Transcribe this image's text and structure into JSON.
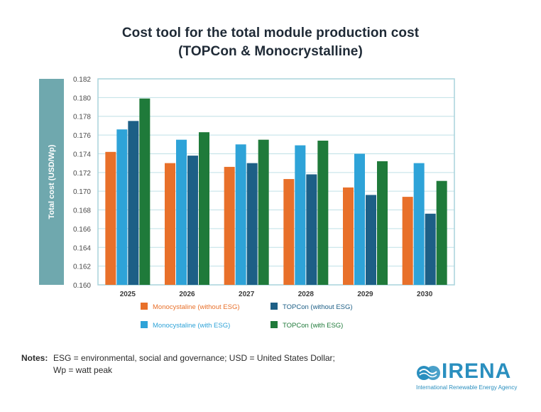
{
  "title_line1": "Cost tool for the total module production cost",
  "title_line2": "(TOPCon & Monocrystalline)",
  "chart_data": {
    "type": "bar",
    "ylabel": "Total cost (USD/Wp)",
    "xlabel": "",
    "ylim": [
      0.16,
      0.182
    ],
    "yticks": [
      "0.182",
      "0.180",
      "0.178",
      "0.176",
      "0.174",
      "0.172",
      "0.170",
      "0.168",
      "0.166",
      "0.164",
      "0.162",
      "0.160"
    ],
    "categories": [
      "2025",
      "2026",
      "2027",
      "2028",
      "2029",
      "2030"
    ],
    "series": [
      {
        "name": "Monocystaline (without ESG)",
        "color": "#e8702a",
        "values": [
          0.1742,
          0.173,
          0.1726,
          0.1713,
          0.1704,
          0.1694
        ]
      },
      {
        "name": "Monocystaline (with ESG)",
        "color": "#2ea3d8",
        "values": [
          0.1766,
          0.1755,
          0.175,
          0.1749,
          0.174,
          0.173
        ]
      },
      {
        "name": "TOPCon (without ESG)",
        "color": "#1d5f86",
        "values": [
          0.1775,
          0.1738,
          0.173,
          0.1718,
          0.1696,
          0.1676
        ]
      },
      {
        "name": "TOPCon (with ESG)",
        "color": "#1f7a3a",
        "values": [
          0.1799,
          0.1763,
          0.1755,
          0.1754,
          0.1732,
          0.1711
        ]
      }
    ],
    "grid": true,
    "legend_position": "bottom"
  },
  "notes": {
    "label": "Notes:",
    "line1": "ESG = environmental, social and governance; USD = United States Dollar;",
    "line2": "Wp = watt peak"
  },
  "logo": {
    "word": "IRENA",
    "tagline": "International Renewable Energy Agency"
  },
  "colors": {
    "axis_band": "#6fa8ae",
    "grid": "#bfe0e6",
    "text": "#1f2a36"
  }
}
